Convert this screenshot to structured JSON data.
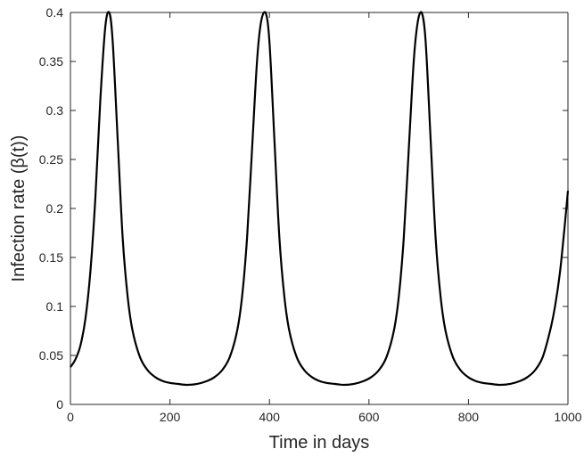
{
  "chart_data": {
    "type": "line",
    "title": "",
    "xlabel": "Time in days",
    "ylabel": "Infection rate (β(t))",
    "xlim": [
      0,
      1000
    ],
    "ylim": [
      0,
      0.4
    ],
    "xticks": [
      0,
      200,
      400,
      600,
      800,
      1000
    ],
    "xtick_labels": [
      "0",
      "200",
      "400",
      "600",
      "800",
      "1000"
    ],
    "yticks": [
      0,
      0.05,
      0.1,
      0.15,
      0.2,
      0.25,
      0.3,
      0.35,
      0.4
    ],
    "ytick_labels": [
      "0",
      "0.05",
      "0.1",
      "0.15",
      "0.2",
      "0.25",
      "0.3",
      "0.35",
      "0.4"
    ],
    "grid": false,
    "legend": false,
    "line_color": "#000000",
    "series": [
      {
        "x": [
          0,
          10,
          20,
          30,
          40,
          50,
          60,
          70,
          78,
          85,
          95,
          105,
          115,
          125,
          140,
          155,
          170,
          185,
          200,
          215,
          235,
          255,
          275,
          290,
          305,
          320,
          335,
          345,
          355,
          365,
          375,
          383,
          392,
          400,
          410,
          420,
          430,
          440,
          455,
          470,
          485,
          500,
          515,
          530,
          550,
          570,
          590,
          605,
          620,
          635,
          650,
          660,
          670,
          680,
          690,
          698,
          706,
          714,
          724,
          734,
          744,
          754,
          769,
          784,
          799,
          814,
          829,
          844,
          864,
          884,
          904,
          919,
          934,
          949,
          964,
          974,
          984,
          994,
          1000
        ],
        "y": [
          0.038,
          0.046,
          0.06,
          0.087,
          0.135,
          0.21,
          0.31,
          0.385,
          0.4,
          0.37,
          0.27,
          0.17,
          0.11,
          0.075,
          0.048,
          0.035,
          0.028,
          0.024,
          0.022,
          0.021,
          0.02,
          0.021,
          0.024,
          0.028,
          0.035,
          0.048,
          0.075,
          0.11,
          0.17,
          0.26,
          0.35,
          0.39,
          0.4,
          0.37,
          0.27,
          0.17,
          0.11,
          0.075,
          0.048,
          0.035,
          0.028,
          0.024,
          0.022,
          0.021,
          0.02,
          0.021,
          0.024,
          0.028,
          0.035,
          0.048,
          0.075,
          0.11,
          0.17,
          0.26,
          0.35,
          0.39,
          0.4,
          0.37,
          0.27,
          0.17,
          0.11,
          0.075,
          0.048,
          0.035,
          0.028,
          0.024,
          0.022,
          0.021,
          0.02,
          0.021,
          0.024,
          0.028,
          0.035,
          0.048,
          0.075,
          0.1,
          0.135,
          0.185,
          0.218
        ]
      }
    ]
  }
}
